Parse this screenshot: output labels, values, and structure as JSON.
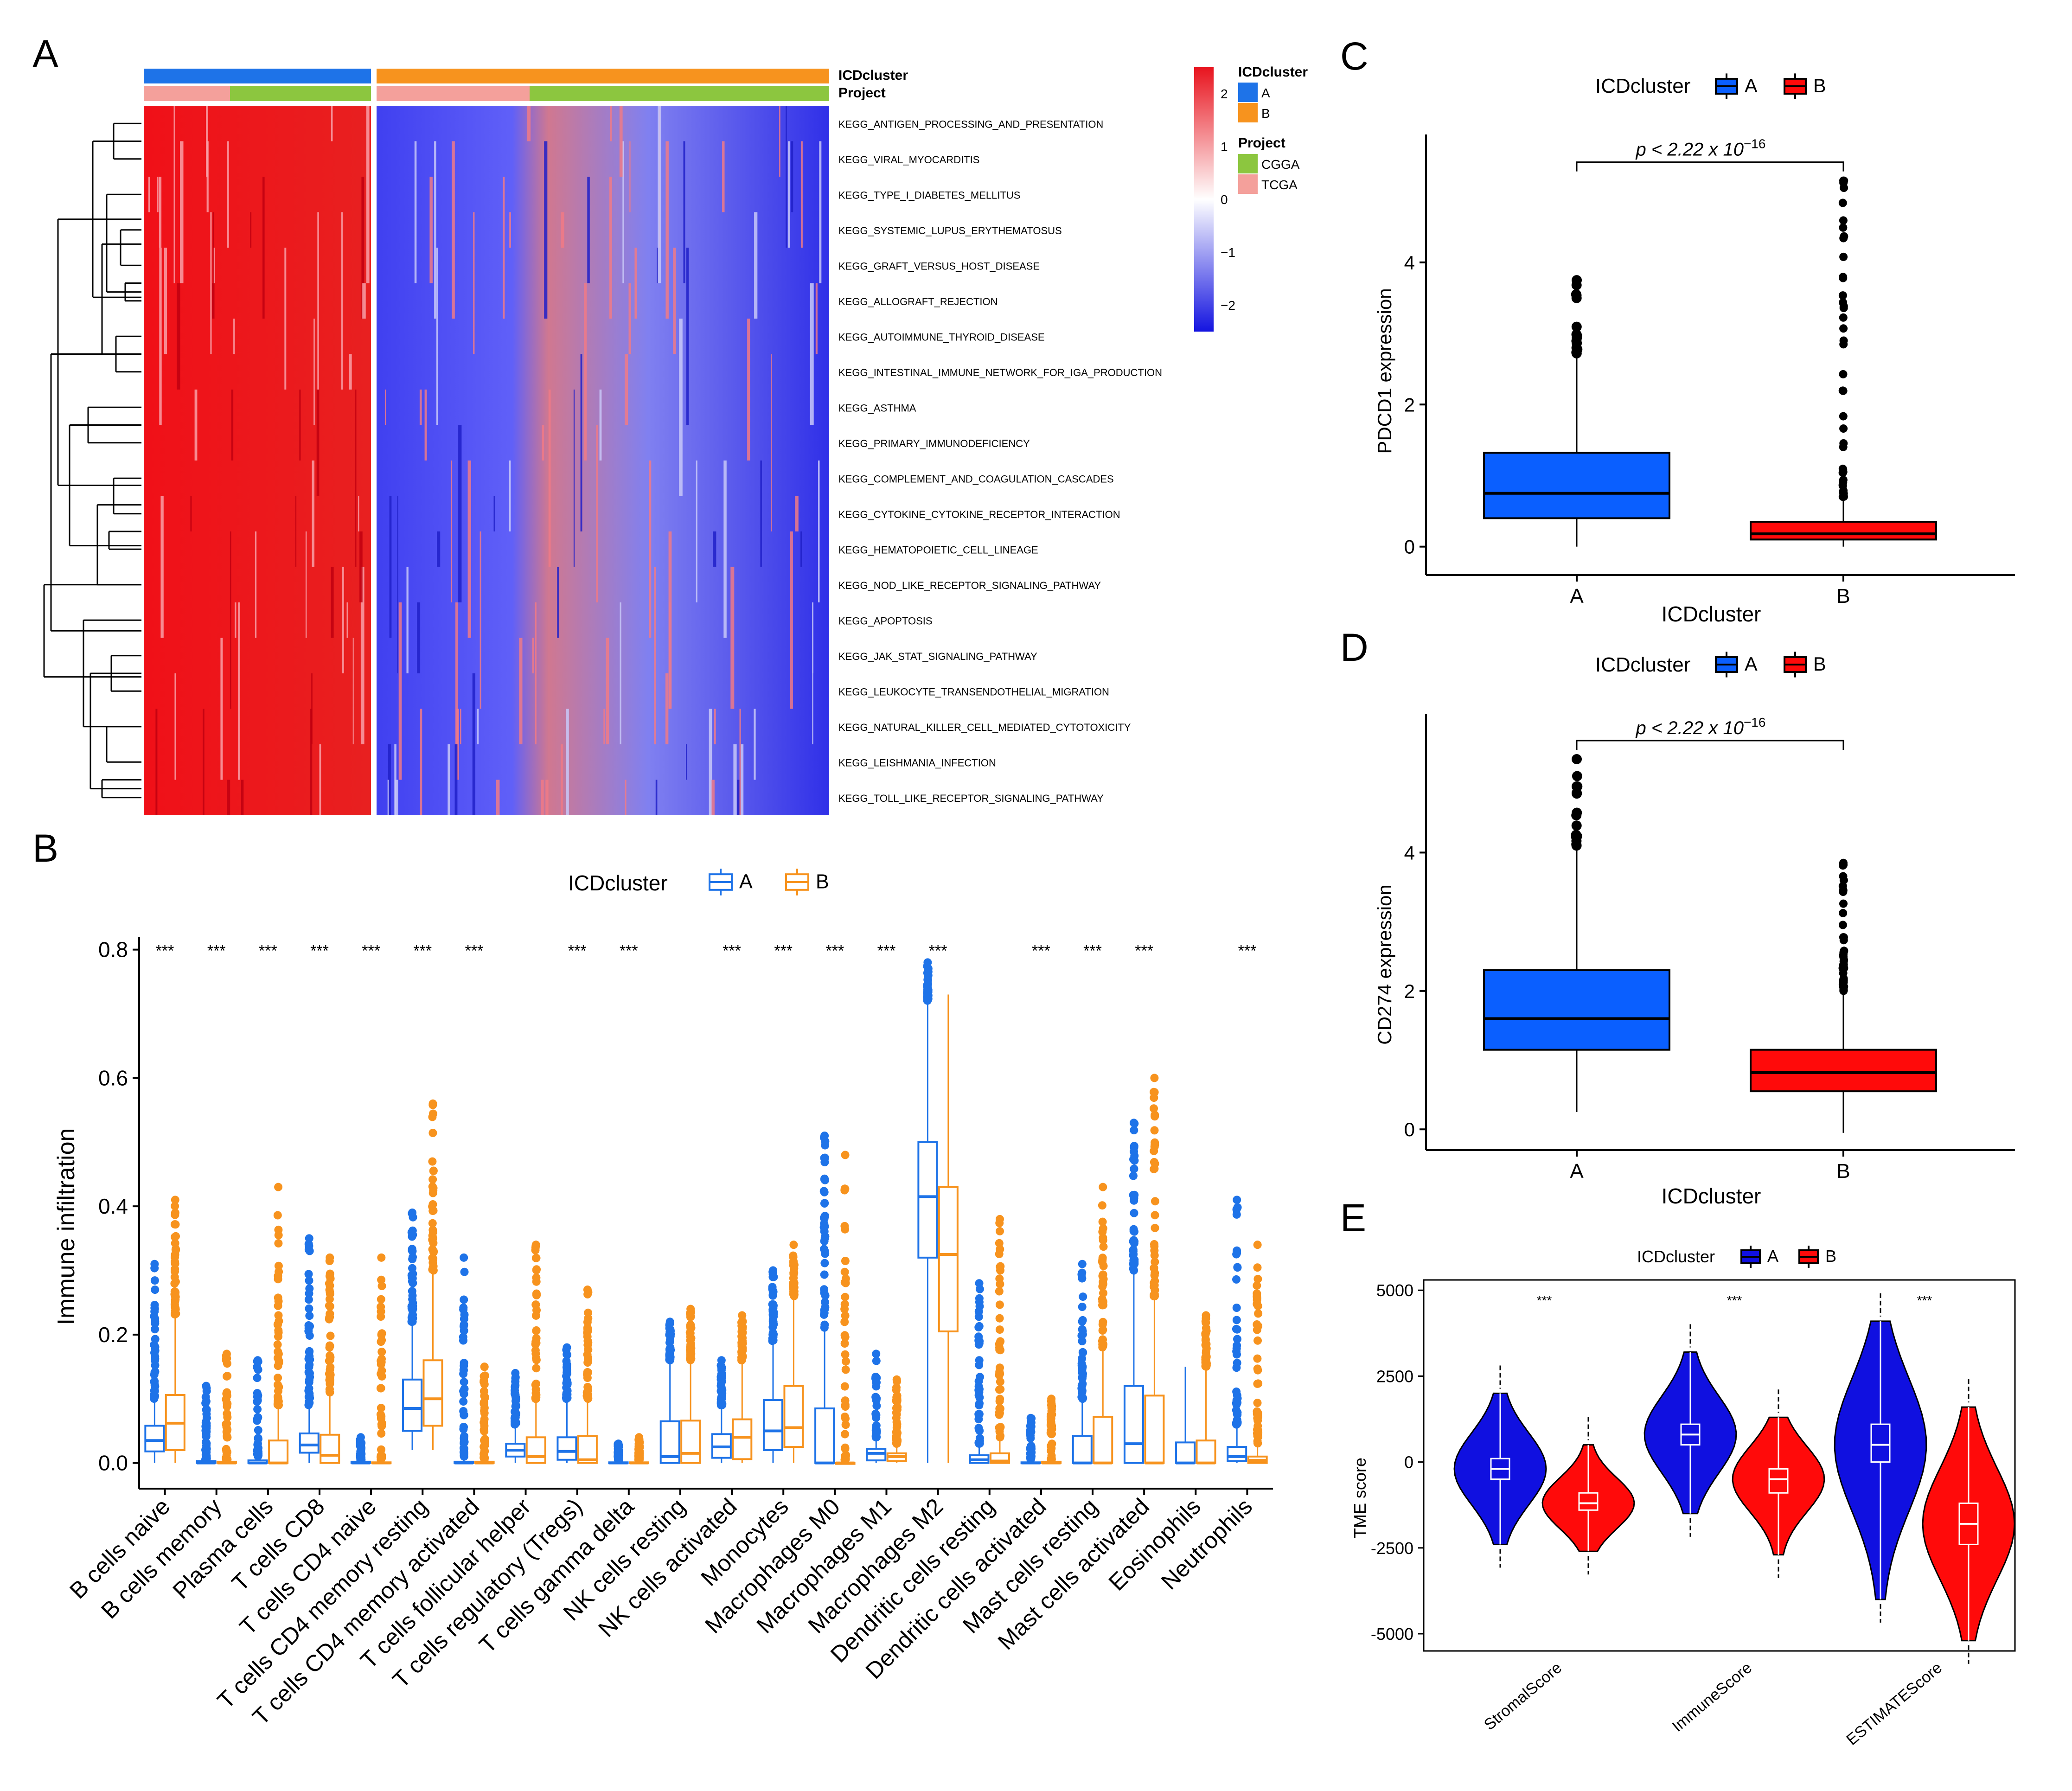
{
  "colors": {
    "blueA": "#0A5FFF",
    "redB": "#FF0A0A",
    "orangeB": "#F7931E",
    "blueAB": "#1E73E8",
    "green": "#8CC63F",
    "pink": "#F4A09B"
  },
  "chart_data": [
    {
      "id": "A",
      "panel_label": "A",
      "type": "heatmap",
      "annotations": {
        "ICDcluster": "ICDcluster",
        "Project": "Project"
      },
      "rows": [
        "KEGG_ANTIGEN_PROCESSING_AND_PRESENTATION",
        "KEGG_VIRAL_MYOCARDITIS",
        "KEGG_TYPE_I_DIABETES_MELLITUS",
        "KEGG_SYSTEMIC_LUPUS_ERYTHEMATOSUS",
        "KEGG_GRAFT_VERSUS_HOST_DISEASE",
        "KEGG_ALLOGRAFT_REJECTION",
        "KEGG_AUTOIMMUNE_THYROID_DISEASE",
        "KEGG_INTESTINAL_IMMUNE_NETWORK_FOR_IGA_PRODUCTION",
        "KEGG_ASTHMA",
        "KEGG_PRIMARY_IMMUNODEFICIENCY",
        "KEGG_COMPLEMENT_AND_COAGULATION_CASCADES",
        "KEGG_CYTOKINE_CYTOKINE_RECEPTOR_INTERACTION",
        "KEGG_HEMATOPOIETIC_CELL_LINEAGE",
        "KEGG_NOD_LIKE_RECEPTOR_SIGNALING_PATHWAY",
        "KEGG_APOPTOSIS",
        "KEGG_JAK_STAT_SIGNALING_PATHWAY",
        "KEGG_LEUKOCYTE_TRANSENDOTHELIAL_MIGRATION",
        "KEGG_NATURAL_KILLER_CELL_MEDIATED_CYTOTOXICITY",
        "KEGG_LEISHMANIA_INFECTION",
        "KEGG_TOLL_LIKE_RECEPTOR_SIGNALING_PATHWAY"
      ],
      "groups": [
        {
          "name": "A",
          "fraction": 0.33
        },
        {
          "name": "B",
          "fraction": 0.67
        }
      ],
      "colorbar": {
        "ticks": [
          "2",
          "1",
          "0",
          "−1",
          "−2"
        ],
        "range": [
          -2.5,
          2.5
        ]
      },
      "legend": {
        "icd_title": "ICDcluster",
        "icd_items": [
          "A",
          "B"
        ],
        "proj_title": "Project",
        "proj_items": [
          "CGGA",
          "TCGA"
        ]
      }
    },
    {
      "id": "B",
      "panel_label": "B",
      "type": "box",
      "legend_title": "ICDcluster",
      "legend_items": [
        "A",
        "B"
      ],
      "ylabel": "Immune infiltration",
      "ylim": [
        -0.04,
        0.82
      ],
      "yticks": [
        "0.0",
        "0.2",
        "0.4",
        "0.6",
        "0.8"
      ],
      "categories": [
        "B cells naive",
        "B cells memory",
        "Plasma cells",
        "T cells CD8",
        "T cells CD4 naive",
        "T cells CD4 memory resting",
        "T cells CD4 memory activated",
        "T cells follicular helper",
        "T cells regulatory (Tregs)",
        "T cells gamma delta",
        "NK cells resting",
        "NK cells activated",
        "Monocytes",
        "Macrophages M0",
        "Macrophages M1",
        "Macrophages M2",
        "Dendritic cells resting",
        "Dendritic cells activated",
        "Mast cells resting",
        "Mast cells activated",
        "Eosinophils",
        "Neutrophils"
      ],
      "significance": [
        "***",
        "***",
        "***",
        "***",
        "***",
        "***",
        "***",
        "",
        "***",
        "***",
        "",
        "***",
        "***",
        "***",
        "***",
        "***",
        "",
        "***",
        "***",
        "***",
        "",
        "***"
      ],
      "series": [
        {
          "name": "A",
          "boxes": [
            [
              0.0,
              0.018,
              0.035,
              0.058,
              0.1,
              0.31
            ],
            [
              0.0,
              0.0,
              0.0,
              0.003,
              0.005,
              0.12
            ],
            [
              0.0,
              0.0,
              0.0,
              0.004,
              0.01,
              0.16
            ],
            [
              0.0,
              0.016,
              0.028,
              0.046,
              0.09,
              0.35
            ],
            [
              0.0,
              0.0,
              0.0,
              0.002,
              0.005,
              0.04
            ],
            [
              0.02,
              0.05,
              0.085,
              0.13,
              0.22,
              0.39
            ],
            [
              0.0,
              0.0,
              0.0,
              0.002,
              0.01,
              0.32
            ],
            [
              0.0,
              0.01,
              0.02,
              0.03,
              0.06,
              0.14
            ],
            [
              0.0,
              0.005,
              0.018,
              0.04,
              0.1,
              0.18
            ],
            [
              0.0,
              0.0,
              0.0,
              0.001,
              0.005,
              0.03
            ],
            [
              0.0,
              0.0,
              0.01,
              0.065,
              0.16,
              0.22
            ],
            [
              0.0,
              0.008,
              0.025,
              0.045,
              0.09,
              0.16
            ],
            [
              0.0,
              0.02,
              0.05,
              0.098,
              0.19,
              0.3
            ],
            [
              0.0,
              0.0,
              0.0,
              0.085,
              0.21,
              0.51
            ],
            [
              0.0,
              0.004,
              0.015,
              0.022,
              0.04,
              0.17
            ],
            [
              0.0,
              0.32,
              0.415,
              0.5,
              0.72,
              0.78
            ],
            [
              0.0,
              0.0,
              0.005,
              0.012,
              0.03,
              0.28
            ],
            [
              0.0,
              0.0,
              0.0,
              0.001,
              0.005,
              0.07
            ],
            [
              0.0,
              0.0,
              0.0,
              0.042,
              0.1,
              0.31
            ],
            [
              0.0,
              0.0,
              0.03,
              0.12,
              0.3,
              0.53
            ],
            [
              0.0,
              0.0,
              0.0,
              0.032,
              0.15,
              0.15
            ],
            [
              0.0,
              0.003,
              0.01,
              0.025,
              0.06,
              0.41
            ]
          ]
        },
        {
          "name": "B",
          "boxes": [
            [
              0.0,
              0.02,
              0.062,
              0.106,
              0.23,
              0.41
            ],
            [
              0.0,
              0.0,
              0.0,
              0.002,
              0.005,
              0.17
            ],
            [
              0.0,
              0.0,
              0.0,
              0.035,
              0.09,
              0.43
            ],
            [
              0.0,
              0.0,
              0.012,
              0.044,
              0.11,
              0.32
            ],
            [
              0.0,
              0.0,
              0.0,
              0.001,
              0.005,
              0.32
            ],
            [
              0.02,
              0.058,
              0.1,
              0.16,
              0.3,
              0.56
            ],
            [
              0.0,
              0.0,
              0.0,
              0.002,
              0.005,
              0.15
            ],
            [
              0.0,
              0.0,
              0.01,
              0.04,
              0.1,
              0.34
            ],
            [
              0.0,
              0.0,
              0.005,
              0.042,
              0.1,
              0.27
            ],
            [
              0.0,
              0.0,
              0.0,
              0.001,
              0.005,
              0.04
            ],
            [
              0.0,
              0.0,
              0.015,
              0.066,
              0.16,
              0.24
            ],
            [
              0.0,
              0.006,
              0.04,
              0.068,
              0.16,
              0.23
            ],
            [
              0.0,
              0.025,
              0.055,
              0.12,
              0.26,
              0.34
            ],
            [
              0.0,
              0.0,
              0.0,
              0.0,
              0.004,
              0.48
            ],
            [
              0.0,
              0.003,
              0.01,
              0.015,
              0.03,
              0.13
            ],
            [
              0.0,
              0.205,
              0.325,
              0.43,
              0.73,
              0.73
            ],
            [
              0.0,
              0.0,
              0.003,
              0.015,
              0.04,
              0.38
            ],
            [
              0.0,
              0.0,
              0.0,
              0.002,
              0.005,
              0.1
            ],
            [
              0.0,
              0.0,
              0.0,
              0.072,
              0.18,
              0.43
            ],
            [
              0.0,
              0.0,
              0.0,
              0.105,
              0.26,
              0.6
            ],
            [
              0.0,
              0.0,
              0.0,
              0.035,
              0.15,
              0.23
            ],
            [
              0.0,
              0.0,
              0.004,
              0.01,
              0.03,
              0.34
            ]
          ]
        }
      ]
    },
    {
      "id": "C",
      "panel_label": "C",
      "type": "box",
      "legend_title": "ICDcluster",
      "legend_items": [
        "A",
        "B"
      ],
      "xlabel": "ICDcluster",
      "ylabel": "PDCD1 expression",
      "categories": [
        "A",
        "B"
      ],
      "ylim": [
        -0.4,
        5.8
      ],
      "yticks": [
        "0",
        "2",
        "4"
      ],
      "pvalue_prefix": "p < 2.22 x 10",
      "pvalue_exponent": "−16",
      "boxes": [
        [
          0.0,
          0.4,
          0.75,
          1.32,
          2.7,
          3.75
        ],
        [
          0.0,
          0.1,
          0.18,
          0.35,
          0.7,
          5.15
        ]
      ]
    },
    {
      "id": "D",
      "panel_label": "D",
      "type": "box",
      "legend_title": "ICDcluster",
      "legend_items": [
        "A",
        "B"
      ],
      "xlabel": "ICDcluster",
      "ylabel": "CD274 expression",
      "categories": [
        "A",
        "B"
      ],
      "ylim": [
        -0.3,
        6.0
      ],
      "yticks": [
        "0",
        "2",
        "4"
      ],
      "pvalue_prefix": "p < 2.22 x 10",
      "pvalue_exponent": "−16",
      "boxes": [
        [
          0.25,
          1.15,
          1.6,
          2.3,
          4.1,
          5.35
        ],
        [
          -0.05,
          0.55,
          0.82,
          1.15,
          2.0,
          3.85
        ]
      ]
    },
    {
      "id": "E",
      "panel_label": "E",
      "type": "violin",
      "legend_title": "ICDcluster",
      "legend_items": [
        "A",
        "B"
      ],
      "ylabel": "TME score",
      "ylim": [
        -5500,
        5300
      ],
      "yticks": [
        "5000",
        "2500",
        "0",
        "-2500",
        "-5000"
      ],
      "categories": [
        "StromalScore",
        "ImmuneScore",
        "ESTIMATEScore"
      ],
      "significance": [
        "***",
        "***",
        "***"
      ],
      "series": [
        {
          "name": "A",
          "medians": [
            -200,
            800,
            500
          ],
          "q1": [
            -500,
            500,
            0
          ],
          "q3": [
            100,
            1100,
            1100
          ],
          "min": [
            -2400,
            -1500,
            -4000
          ],
          "max": [
            2000,
            3200,
            4100
          ]
        },
        {
          "name": "B",
          "medians": [
            -1200,
            -500,
            -1800
          ],
          "q1": [
            -1400,
            -900,
            -2400
          ],
          "q3": [
            -900,
            -200,
            -1200
          ],
          "min": [
            -2600,
            -2700,
            -5200
          ],
          "max": [
            500,
            1300,
            1600
          ]
        }
      ]
    }
  ]
}
